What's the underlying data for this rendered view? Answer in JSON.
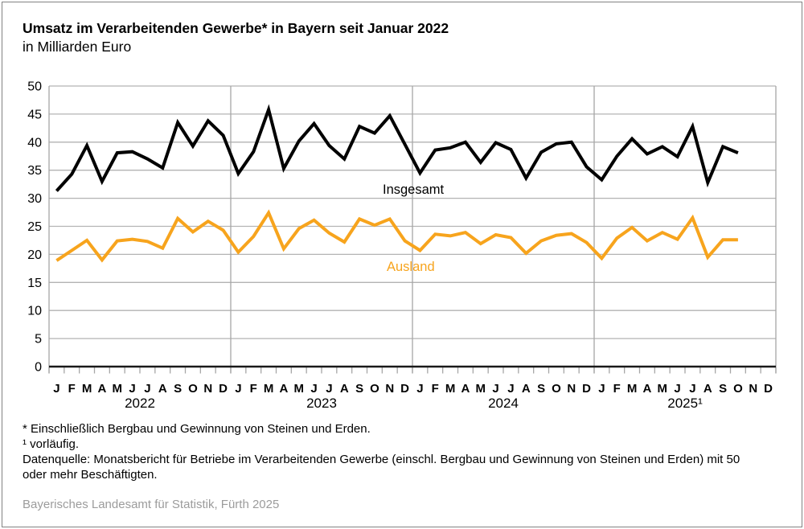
{
  "title": "Umsatz im Verarbeitenden Gewerbe* in Bayern seit Januar 2022",
  "subtitle": "in Milliarden Euro",
  "footnotes": {
    "asterisk": "* Einschließlich Bergbau und Gewinnung von Steinen und Erden.",
    "one": "¹ vorläufig.",
    "datasource": "Datenquelle: Monatsbericht für Betriebe im Verarbeitenden Gewerbe (einschl. Bergbau und Gewinnung von Steinen und Erden) mit 50 oder mehr Beschäftigten."
  },
  "source": "Bayerisches Landesamt für Statistik, Fürth 2025",
  "colors": {
    "insgesamt": "#000000",
    "ausland": "#F7A41D",
    "grid": "#b3b3b3",
    "axis": "#1a1a1a",
    "tick": "#a6a6a6",
    "source_text": "#9c9c9c"
  },
  "chart_data": {
    "type": "line",
    "title": "Umsatz im Verarbeitenden Gewerbe in Bayern seit Januar 2022",
    "ylabel": "in Milliarden Euro",
    "ylim": [
      0,
      50
    ],
    "ytick_step": 5,
    "grid": true,
    "legend_position": "inline-labels",
    "month_labels": [
      "J",
      "F",
      "M",
      "A",
      "M",
      "J",
      "J",
      "A",
      "S",
      "O",
      "N",
      "D"
    ],
    "years": [
      "2022",
      "2023",
      "2024",
      "2025¹"
    ],
    "n_month_slots": 48,
    "series": [
      {
        "name": "Insgesamt",
        "color": "#000000",
        "values": [
          31.3,
          34.3,
          39.4,
          33.0,
          38.1,
          38.3,
          37.0,
          35.4,
          43.5,
          39.3,
          43.8,
          41.2,
          34.4,
          38.3,
          45.8,
          35.3,
          40.2,
          43.3,
          39.4,
          37.0,
          42.8,
          41.6,
          44.7,
          39.6,
          34.5,
          38.6,
          39.0,
          40.0,
          36.4,
          39.9,
          38.7,
          33.6,
          38.2,
          39.7,
          40.0,
          35.6,
          33.3,
          37.5,
          40.6,
          37.9,
          39.2,
          37.4,
          42.8,
          32.8,
          39.2,
          38.1
        ]
      },
      {
        "name": "Ausland",
        "color": "#F7A41D",
        "values": [
          18.9,
          20.7,
          22.5,
          19.0,
          22.4,
          22.7,
          22.3,
          21.1,
          26.4,
          24.0,
          25.9,
          24.3,
          20.4,
          23.2,
          27.4,
          21.0,
          24.6,
          26.1,
          23.8,
          22.2,
          26.3,
          25.2,
          26.3,
          22.4,
          20.7,
          23.6,
          23.3,
          23.9,
          21.9,
          23.5,
          23.0,
          20.2,
          22.4,
          23.4,
          23.7,
          22.1,
          19.3,
          22.9,
          24.8,
          22.4,
          23.9,
          22.7,
          26.5,
          19.5,
          22.6,
          22.6
        ]
      }
    ]
  }
}
